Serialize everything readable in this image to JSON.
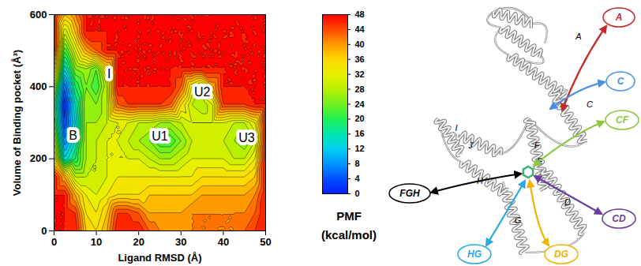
{
  "chart_data": {
    "type": "contour",
    "x_label": "Ligand RMSD (Å)",
    "y_label": "Volume of Binding pocket (Å³)",
    "xlim": [
      0,
      50
    ],
    "xticks": [
      0,
      10,
      20,
      30,
      40,
      50
    ],
    "ylim": [
      0,
      600
    ],
    "yticks": [
      0,
      200,
      400,
      600
    ],
    "pmf": {
      "x": [
        0,
        2.5,
        5,
        7.5,
        10,
        12.5,
        15,
        17.5,
        20,
        22.5,
        25,
        27.5,
        30,
        32.5,
        35,
        37.5,
        40,
        42.5,
        45,
        47.5,
        50
      ],
      "y": [
        0,
        50,
        100,
        150,
        200,
        250,
        300,
        350,
        400,
        450,
        500,
        550,
        600
      ],
      "values": [
        [
          48,
          48,
          48,
          38,
          36,
          40,
          48,
          48,
          48,
          44,
          42,
          42,
          42,
          42,
          42,
          42,
          42,
          42,
          44,
          46,
          48
        ],
        [
          48,
          48,
          46,
          36,
          34,
          38,
          46,
          46,
          44,
          40,
          40,
          40,
          40,
          42,
          42,
          42,
          42,
          42,
          42,
          44,
          48
        ],
        [
          48,
          48,
          40,
          34,
          32,
          34,
          36,
          36,
          36,
          38,
          38,
          38,
          38,
          38,
          40,
          40,
          40,
          40,
          40,
          42,
          48
        ],
        [
          48,
          40,
          30,
          30,
          30,
          32,
          34,
          34,
          34,
          34,
          34,
          34,
          34,
          34,
          36,
          36,
          36,
          36,
          36,
          38,
          48
        ],
        [
          36,
          14,
          20,
          28,
          30,
          32,
          32,
          32,
          32,
          30,
          28,
          28,
          30,
          32,
          32,
          32,
          32,
          30,
          30,
          34,
          48
        ],
        [
          30,
          8,
          16,
          28,
          30,
          32,
          32,
          30,
          28,
          26,
          22,
          22,
          26,
          30,
          30,
          30,
          30,
          28,
          26,
          30,
          48
        ],
        [
          24,
          4,
          14,
          28,
          28,
          30,
          32,
          32,
          30,
          30,
          28,
          28,
          30,
          32,
          32,
          32,
          32,
          30,
          30,
          34,
          48
        ],
        [
          22,
          2,
          16,
          28,
          26,
          30,
          44,
          46,
          46,
          46,
          46,
          44,
          36,
          30,
          28,
          32,
          46,
          46,
          46,
          48,
          48
        ],
        [
          28,
          6,
          20,
          26,
          22,
          30,
          48,
          48,
          48,
          48,
          48,
          48,
          44,
          34,
          30,
          40,
          48,
          48,
          48,
          48,
          48
        ],
        [
          40,
          14,
          26,
          28,
          24,
          36,
          48,
          48,
          48,
          48,
          48,
          48,
          48,
          48,
          48,
          48,
          48,
          48,
          48,
          48,
          48
        ],
        [
          48,
          22,
          32,
          40,
          44,
          48,
          48,
          48,
          48,
          48,
          48,
          48,
          48,
          48,
          48,
          48,
          48,
          48,
          48,
          48,
          48
        ],
        [
          48,
          30,
          38,
          48,
          48,
          48,
          48,
          48,
          48,
          48,
          48,
          48,
          48,
          48,
          48,
          48,
          48,
          48,
          48,
          48,
          48
        ],
        [
          48,
          38,
          42,
          48,
          48,
          48,
          48,
          48,
          48,
          48,
          48,
          48,
          48,
          48,
          48,
          48,
          48,
          48,
          48,
          48,
          48
        ]
      ]
    },
    "colorbar": {
      "label": [
        "PMF",
        "(kcal/mol)"
      ],
      "range": [
        0,
        48
      ],
      "ticks": [
        0,
        4,
        8,
        12,
        16,
        20,
        24,
        28,
        32,
        36,
        40,
        44,
        48
      ]
    },
    "annotations": [
      {
        "text": "B",
        "x": 4.5,
        "y": 265
      },
      {
        "text": "I",
        "x": 13,
        "y": 435
      },
      {
        "text": "U1",
        "x": 25,
        "y": 262
      },
      {
        "text": "U2",
        "x": 35,
        "y": 385
      },
      {
        "text": "U3",
        "x": 45.5,
        "y": 258
      }
    ]
  },
  "diagram": {
    "helix_labels": [
      "A",
      "C",
      "F",
      "E",
      "D",
      "I",
      "J",
      "H",
      "G"
    ],
    "pathways": [
      {
        "label": "A",
        "color": "#c62828"
      },
      {
        "label": "C",
        "color": "#4a90e2"
      },
      {
        "label": "CF",
        "color": "#8cc63f"
      },
      {
        "label": "CD",
        "color": "#6a3d9a"
      },
      {
        "label": "DG",
        "color": "#f0b400"
      },
      {
        "label": "HG",
        "color": "#29a9e0"
      },
      {
        "label": "FGH",
        "color": "#000000"
      }
    ]
  }
}
